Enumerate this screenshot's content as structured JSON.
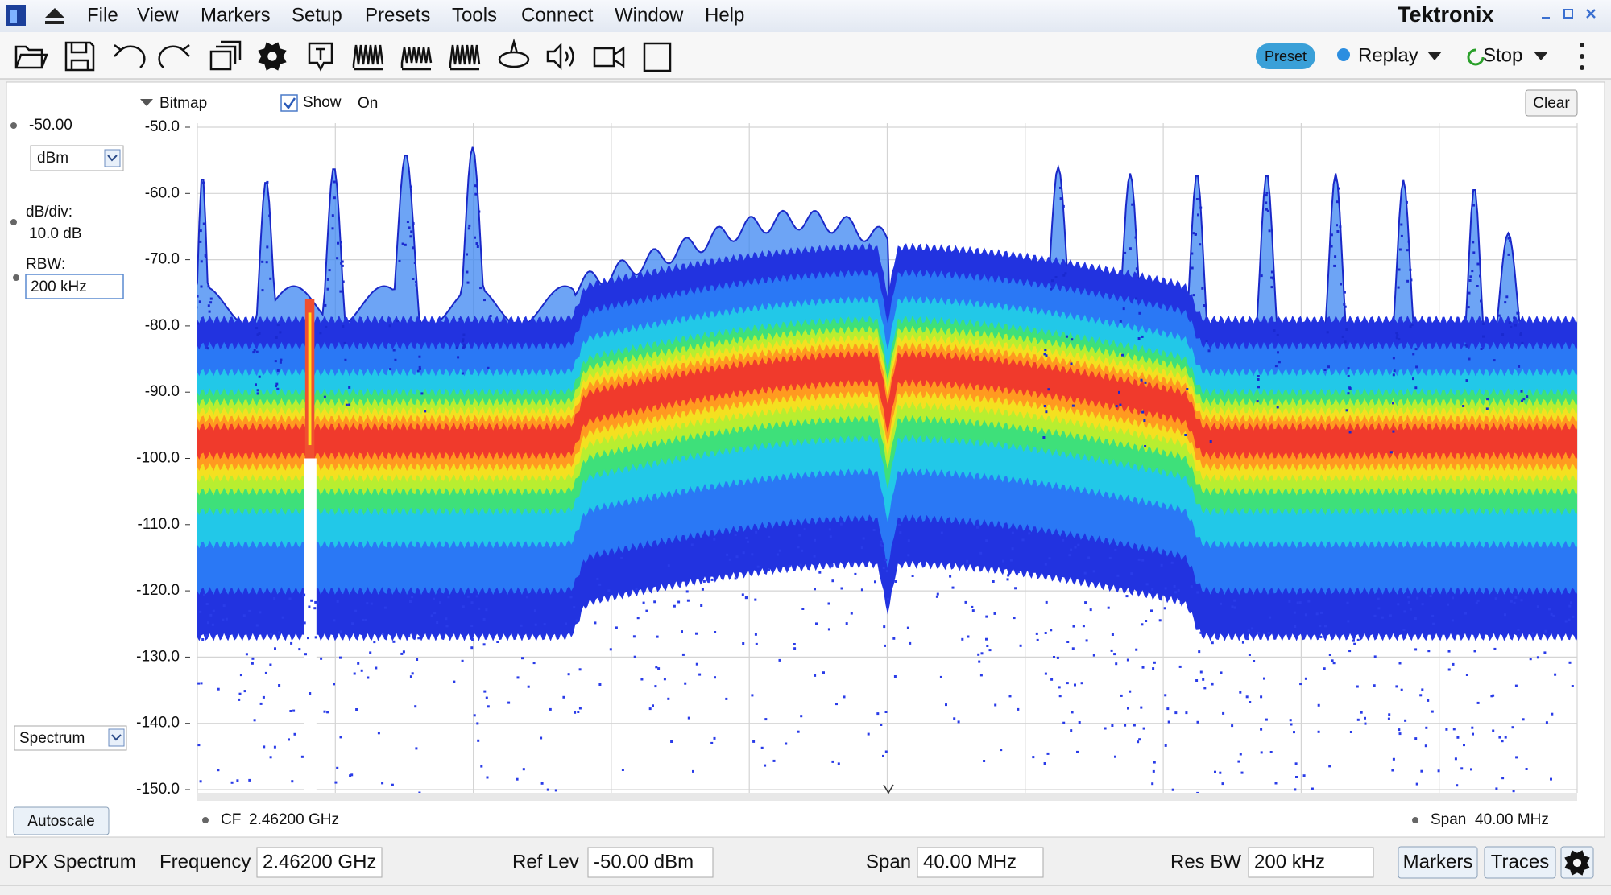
{
  "menu": {
    "items": [
      "File",
      "View",
      "Markers",
      "Setup",
      "Presets",
      "Tools",
      "Connect",
      "Window",
      "Help"
    ],
    "brand": "Tektronix"
  },
  "toolbar": {
    "preset": "Preset",
    "replay": "Replay",
    "stop": "Stop"
  },
  "display": {
    "bitmap": "Bitmap",
    "show": "Show",
    "on": "On",
    "clear": "Clear",
    "ref_level": "-50.00",
    "units": "dBm",
    "db_div_label": "dB/div:",
    "db_div": "10.0 dB",
    "rbw_label": "RBW:",
    "rbw": "200 kHz",
    "view": "Spectrum",
    "autoscale": "Autoscale",
    "y_labels": [
      "-50.0",
      "-60.0",
      "-70.0",
      "-80.0",
      "-90.0",
      "-100.0",
      "-110.0",
      "-120.0",
      "-130.0",
      "-140.0",
      "-150.0"
    ],
    "cf_label": "CF",
    "cf": "2.46200 GHz",
    "span_label": "Span",
    "span": "40.00 MHz"
  },
  "status": {
    "mode": "DPX Spectrum",
    "frequency_label": "Frequency",
    "frequency": "2.46200 GHz",
    "ref_lev_label": "Ref Lev",
    "ref_lev": "-50.00 dBm",
    "span_label": "Span",
    "span": "40.00 MHz",
    "res_bw_label": "Res BW",
    "res_bw": "200 kHz",
    "markers": "Markers",
    "traces": "Traces"
  }
}
